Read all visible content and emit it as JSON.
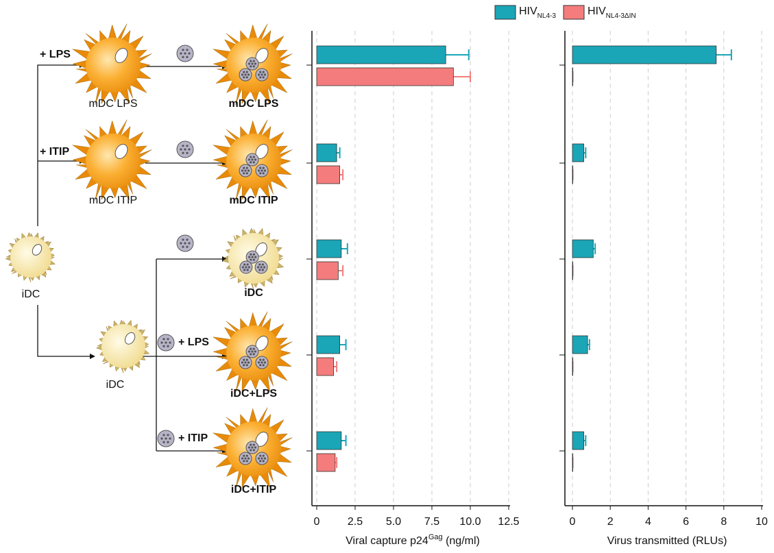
{
  "legend": [
    {
      "name": "HIV",
      "subscript": "NL4-3",
      "color": "#1aa6b7"
    },
    {
      "name": "HIV",
      "subscript": "NL4-3ΔIN",
      "color": "#f47c7c"
    }
  ],
  "diagram": {
    "labels": [
      {
        "text": "+ LPS",
        "bold": true
      },
      {
        "text": "mDC LPS",
        "bold": false
      },
      {
        "text": "mDC LPS",
        "bold": true
      },
      {
        "text": "+ ITIP",
        "bold": true
      },
      {
        "text": "mDC ITIP",
        "bold": false
      },
      {
        "text": "mDC ITIP",
        "bold": true
      },
      {
        "text": "iDC",
        "bold": false
      },
      {
        "text": "iDC",
        "bold": false
      },
      {
        "text": "iDC",
        "bold": true
      },
      {
        "text": "+ LPS",
        "bold": true
      },
      {
        "text": "iDC+LPS",
        "bold": true
      },
      {
        "text": "+ ITIP",
        "bold": true
      },
      {
        "text": "iDC+ITIP",
        "bold": true
      }
    ]
  },
  "chart_data": [
    {
      "type": "hbar",
      "xlabel": "Viral capture p24",
      "xlabel_superscript": "Gag",
      "xlabel_unit": "(ng/ml)",
      "categories": [
        null,
        null,
        null,
        null,
        null
      ],
      "series": [
        {
          "name": "HIV",
          "subscript": "NL4-3",
          "color": "#1aa6b7",
          "values": [
            8.4,
            1.3,
            1.6,
            1.5,
            1.6
          ],
          "errors": [
            1.5,
            0.2,
            0.4,
            0.4,
            0.3
          ]
        },
        {
          "name": "HIV",
          "subscript": "NL4-3ΔIN",
          "color": "#f47c7c",
          "values": [
            8.9,
            1.5,
            1.4,
            1.1,
            1.2
          ],
          "errors": [
            1.1,
            0.2,
            0.3,
            0.2,
            0.1
          ]
        }
      ],
      "xlim": [
        0,
        12.5
      ],
      "xticks": [
        0,
        2.5,
        {
          "value": 5,
          "label": "5.0"
        },
        7.5,
        {
          "value": 10,
          "label": "10.0"
        },
        12.5
      ],
      "grid": true
    },
    {
      "type": "hbar",
      "xlabel": "Virus transmitted (RLUs)",
      "categories": [
        null,
        null,
        null,
        null,
        null
      ],
      "series": [
        {
          "name": "HIV",
          "subscript": "NL4-3",
          "color": "#1aa6b7",
          "values": [
            7.6,
            0.6,
            1.1,
            0.8,
            0.6
          ],
          "errors": [
            0.8,
            0.1,
            0.1,
            0.1,
            0.1
          ]
        },
        {
          "name": "HIV",
          "subscript": "NL4-3ΔIN",
          "color": "#f47c7c",
          "values": [
            0.02,
            0.02,
            0.02,
            0.02,
            0.02
          ],
          "errors": [
            0,
            0,
            0,
            0,
            0
          ]
        }
      ],
      "xlim": [
        0,
        10
      ],
      "xticks": [
        0,
        2,
        4,
        6,
        8,
        10
      ],
      "grid": true
    }
  ]
}
